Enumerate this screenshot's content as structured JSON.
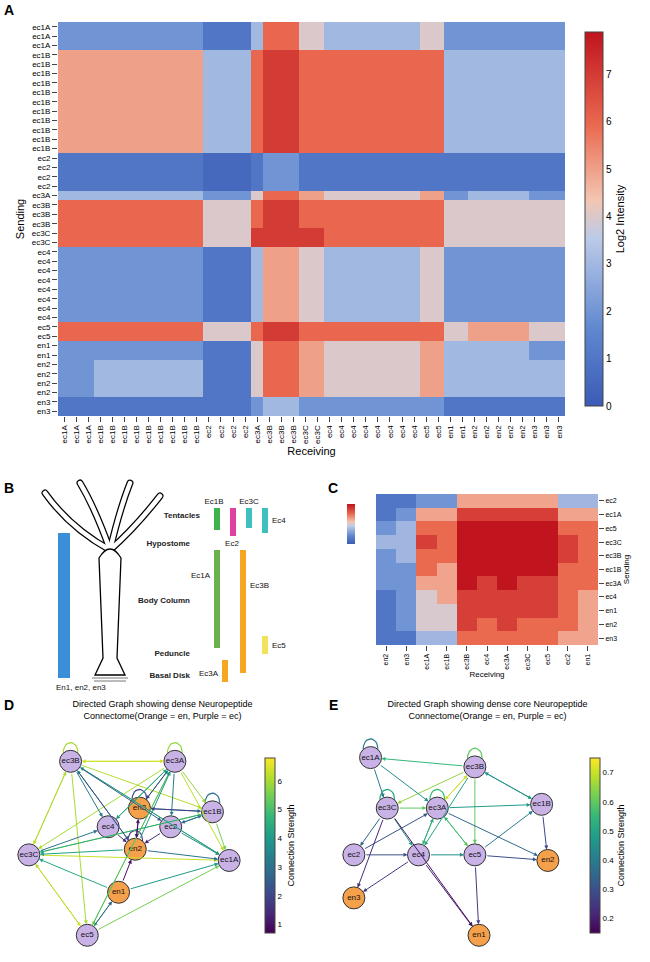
{
  "chart_data": [
    {
      "panel": "A",
      "type": "heatmap",
      "x_label": "Receiving",
      "y_label": "Sending",
      "groups": [
        "ec1A",
        "ec1B",
        "ec2",
        "ec3A",
        "ec3B",
        "ec3C",
        "ec4",
        "ec5",
        "en1",
        "en2",
        "en3"
      ],
      "x_tick_labels": [
        "ec1A",
        "ec1A",
        "ec1A",
        "ec1B",
        "ec1B",
        "ec1B",
        "ec1B",
        "ec1B",
        "ec1B",
        "ec1B",
        "ec1B",
        "ec1B",
        "ec2",
        "ec2",
        "ec2",
        "ec2",
        "ec3A",
        "ec3B",
        "ec3B",
        "ec3B",
        "ec3C",
        "ec3C",
        "ec4",
        "ec4",
        "ec4",
        "ec4",
        "ec4",
        "ec4",
        "ec4",
        "ec4",
        "ec5",
        "ec5",
        "en1",
        "en1",
        "en2",
        "en2",
        "en2",
        "en2",
        "en2",
        "en3",
        "en3",
        "en3"
      ],
      "y_tick_labels": [
        "ec1A",
        "ec1A",
        "ec1A",
        "ec1B",
        "ec1B",
        "ec1B",
        "ec1B",
        "ec1B",
        "ec1B",
        "ec1B",
        "ec1B",
        "ec1B",
        "ec1B",
        "ec1B",
        "ec2",
        "ec2",
        "ec2",
        "ec2",
        "ec3A",
        "ec3B",
        "ec3B",
        "ec3B",
        "ec3C",
        "ec3C",
        "ec4",
        "ec4",
        "ec4",
        "ec4",
        "ec4",
        "ec4",
        "ec4",
        "ec4",
        "ec5",
        "ec5",
        "en1",
        "en1",
        "en2",
        "en2",
        "en2",
        "en2",
        "en3",
        "en3"
      ],
      "z": [
        [
          2,
          2,
          1,
          3,
          6,
          4,
          3,
          4,
          2,
          2,
          2
        ],
        [
          5,
          5,
          3,
          6,
          7,
          6,
          6,
          6,
          3,
          3,
          3
        ],
        [
          1,
          1,
          0.5,
          1,
          2,
          1,
          1,
          1,
          1,
          1,
          1
        ],
        [
          3,
          3,
          2,
          4,
          6,
          5,
          4,
          5,
          2,
          3,
          2
        ],
        [
          6,
          6,
          4,
          6,
          7,
          6,
          6,
          6,
          4,
          4,
          4
        ],
        [
          6,
          6,
          4,
          7,
          7,
          7,
          6,
          6,
          4,
          4,
          4
        ],
        [
          2,
          2,
          1,
          3,
          5,
          4,
          3,
          4,
          2,
          2,
          2
        ],
        [
          6,
          6,
          4,
          6,
          7,
          6,
          6,
          6,
          4,
          5,
          4
        ],
        [
          2,
          2,
          1,
          4,
          6,
          5,
          4,
          5,
          3,
          3,
          2
        ],
        [
          2,
          3,
          1,
          4,
          6,
          5,
          4,
          5,
          3,
          3,
          3
        ],
        [
          1,
          1,
          1,
          2,
          3,
          2,
          2,
          2,
          1,
          1,
          1
        ]
      ],
      "colorbar": {
        "title": "Log2 Intensity",
        "range": [
          0,
          7.9
        ],
        "ticks": [
          0,
          1,
          2,
          3,
          4,
          5,
          6,
          7
        ]
      }
    },
    {
      "panel": "C",
      "type": "heatmap",
      "x_label": "Receiving",
      "y_label": "Sending",
      "x_categories": [
        "en2",
        "en3",
        "ec1A",
        "ec1B",
        "ec3B",
        "ec4",
        "ec3A",
        "ec3C",
        "ec5",
        "ec2",
        "en1"
      ],
      "y_categories": [
        "ec2",
        "ec1A",
        "ec5",
        "ec3C",
        "ec3B",
        "ec1B",
        "ec3A",
        "ec4",
        "en1",
        "en2",
        "en3"
      ],
      "z": [
        [
          1,
          1,
          2,
          2,
          5,
          5,
          5,
          5,
          5,
          3,
          3
        ],
        [
          1,
          2,
          5,
          5,
          7,
          7,
          7,
          7,
          7,
          5,
          5
        ],
        [
          2,
          3,
          6,
          6,
          8,
          8,
          8,
          8,
          8,
          6,
          6
        ],
        [
          3,
          3,
          7,
          6,
          8,
          8,
          8,
          8,
          8,
          7,
          6
        ],
        [
          2,
          3,
          6,
          6,
          8,
          8,
          8,
          8,
          8,
          7,
          6
        ],
        [
          2,
          2,
          6,
          5,
          8,
          8,
          8,
          8,
          8,
          6,
          6
        ],
        [
          2,
          2,
          5,
          5,
          8,
          7,
          8,
          7,
          7,
          6,
          6
        ],
        [
          1,
          2,
          4,
          5,
          7,
          7,
          7,
          7,
          7,
          6,
          5
        ],
        [
          1,
          2,
          4,
          4,
          7,
          7,
          7,
          7,
          7,
          6,
          5
        ],
        [
          1,
          2,
          4,
          4,
          7,
          6,
          7,
          6,
          6,
          6,
          5
        ],
        [
          1,
          1,
          3,
          3,
          6,
          6,
          6,
          6,
          6,
          5,
          5
        ]
      ],
      "colorbar": {
        "range": [
          0,
          8
        ]
      }
    },
    {
      "panel": "D",
      "type": "network",
      "title": "Directed Graph showing dense Neuropeptide Connectome(Orange = en, Purple = ec)",
      "nodes": [
        {
          "name": "ec3B",
          "color": "#c9b3e6"
        },
        {
          "name": "ec3A",
          "color": "#c9b3e6"
        },
        {
          "name": "ec1B",
          "color": "#c9b3e6"
        },
        {
          "name": "ec1A",
          "color": "#c9b3e6"
        },
        {
          "name": "ec3C",
          "color": "#c9b3e6"
        },
        {
          "name": "ec5",
          "color": "#c9b3e6"
        },
        {
          "name": "ec4",
          "color": "#c9b3e6"
        },
        {
          "name": "ec2",
          "color": "#c9b3e6"
        },
        {
          "name": "en3",
          "color": "#f5a04a"
        },
        {
          "name": "en2",
          "color": "#f5a04a"
        },
        {
          "name": "en1",
          "color": "#f5a04a"
        }
      ],
      "edges": [
        [
          "ec3B",
          "ec3A",
          6.5
        ],
        [
          "ec3A",
          "ec3B",
          6.3
        ],
        [
          "ec3B",
          "ec3C",
          6.4
        ],
        [
          "ec3C",
          "ec3B",
          6.0
        ],
        [
          "ec3A",
          "ec1B",
          5.8
        ],
        [
          "ec1B",
          "ec1A",
          5.5
        ],
        [
          "ec3A",
          "ec1A",
          6.2
        ],
        [
          "ec3C",
          "ec5",
          6.6
        ],
        [
          "ec5",
          "ec3C",
          6.1
        ],
        [
          "ec3B",
          "ec5",
          6.0
        ],
        [
          "ec3A",
          "ec5",
          5.9
        ],
        [
          "ec5",
          "ec1A",
          5.5
        ],
        [
          "ec3C",
          "ec1A",
          6.3
        ],
        [
          "ec3C",
          "ec1B",
          5.7
        ],
        [
          "ec3B",
          "ec1B",
          6.1
        ],
        [
          "ec3B",
          "ec1A",
          5.2
        ],
        [
          "ec3A",
          "ec3C",
          6.0
        ],
        [
          "ec1B",
          "ec3C",
          4.5
        ],
        [
          "ec1A",
          "ec3B",
          4.0
        ],
        [
          "ec5",
          "ec3A",
          5.0
        ],
        [
          "ec3B",
          "ec4",
          3.2
        ],
        [
          "ec3A",
          "ec4",
          3.5
        ],
        [
          "ec3C",
          "ec4",
          3.0
        ],
        [
          "ec4",
          "ec3A",
          4.5
        ],
        [
          "ec3B",
          "ec2",
          2.5
        ],
        [
          "ec3A",
          "ec2",
          3.3
        ],
        [
          "ec2",
          "ec1B",
          4.0
        ],
        [
          "ec2",
          "ec1A",
          3.8
        ],
        [
          "ec1B",
          "ec2",
          2.8
        ],
        [
          "en2",
          "ec3B",
          3.5
        ],
        [
          "en2",
          "ec3A",
          3.8
        ],
        [
          "en2",
          "ec3C",
          4.2
        ],
        [
          "en2",
          "ec1A",
          3.0
        ],
        [
          "en3",
          "ec3A",
          4.0
        ],
        [
          "en3",
          "ec1B",
          3.4
        ],
        [
          "en1",
          "ec5",
          4.8
        ],
        [
          "en1",
          "ec3C",
          4.4
        ],
        [
          "en1",
          "ec1A",
          4.0
        ],
        [
          "ec3B",
          "en2",
          2.2
        ],
        [
          "ec3A",
          "en3",
          2.0
        ],
        [
          "ec1B",
          "en3",
          1.8
        ],
        [
          "ec5",
          "en1",
          2.6
        ],
        [
          "ec4",
          "en2",
          1.5
        ],
        [
          "en2",
          "en3",
          1.2
        ],
        [
          "en3",
          "en2",
          1.0
        ],
        [
          "en1",
          "en2",
          0.9
        ],
        [
          "ec2",
          "en2",
          1.4
        ],
        [
          "ec3B",
          "ec3B",
          6.0
        ],
        [
          "ec3A",
          "ec3A",
          5.8
        ],
        [
          "ec1B",
          "ec1B",
          3.0
        ],
        [
          "en3",
          "en3",
          2.0
        ],
        [
          "en2",
          "en2",
          1.8
        ]
      ],
      "colorbar": {
        "title": "Connection Strength",
        "range": [
          0.7,
          6.8
        ],
        "ticks": [
          1,
          2,
          3,
          4,
          5,
          6
        ]
      }
    },
    {
      "panel": "E",
      "type": "network",
      "title": "Directed Graph showing dense core Neuropeptide Connectome(Orange = en, Purple = ec)",
      "nodes": [
        {
          "name": "ec1A",
          "color": "#c9b3e6"
        },
        {
          "name": "ec3B",
          "color": "#c9b3e6"
        },
        {
          "name": "ec3C",
          "color": "#c9b3e6"
        },
        {
          "name": "ec3A",
          "color": "#c9b3e6"
        },
        {
          "name": "ec1B",
          "color": "#c9b3e6"
        },
        {
          "name": "ec2",
          "color": "#c9b3e6"
        },
        {
          "name": "ec4",
          "color": "#c9b3e6"
        },
        {
          "name": "ec5",
          "color": "#c9b3e6"
        },
        {
          "name": "en2",
          "color": "#f5a04a"
        },
        {
          "name": "en3",
          "color": "#f5a04a"
        },
        {
          "name": "en1",
          "color": "#f5a04a"
        }
      ],
      "edges": [
        [
          "ec3B",
          "ec3A",
          0.72
        ],
        [
          "ec3A",
          "ec3B",
          0.7
        ],
        [
          "ec3B",
          "ec3C",
          0.65
        ],
        [
          "ec3C",
          "ec3A",
          0.6
        ],
        [
          "ec3A",
          "ec5",
          0.62
        ],
        [
          "ec5",
          "ec3A",
          0.55
        ],
        [
          "ec3B",
          "ec1B",
          0.5
        ],
        [
          "ec1B",
          "ec3B",
          0.45
        ],
        [
          "ec3B",
          "ec1A",
          0.55
        ],
        [
          "ec1A",
          "ec3C",
          0.4
        ],
        [
          "ec3C",
          "ec4",
          0.5
        ],
        [
          "ec4",
          "ec5",
          0.45
        ],
        [
          "ec3A",
          "ec4",
          0.58
        ],
        [
          "ec4",
          "ec3A",
          0.52
        ],
        [
          "ec5",
          "ec1B",
          0.4
        ],
        [
          "ec3B",
          "ec5",
          0.6
        ],
        [
          "ec3A",
          "ec1B",
          0.48
        ],
        [
          "ec3C",
          "ec2",
          0.35
        ],
        [
          "ec2",
          "ec3A",
          0.3
        ],
        [
          "ec4",
          "en3",
          0.25
        ],
        [
          "ec3C",
          "en3",
          0.22
        ],
        [
          "ec5",
          "en2",
          0.3
        ],
        [
          "ec1B",
          "en2",
          0.28
        ],
        [
          "ec3A",
          "en2",
          0.35
        ],
        [
          "ec4",
          "en1",
          0.2
        ],
        [
          "ec3C",
          "en1",
          0.18
        ],
        [
          "ec5",
          "en1",
          0.25
        ],
        [
          "ec1A",
          "ec3A",
          0.45
        ],
        [
          "ec3B",
          "ec4",
          0.5
        ],
        [
          "ec2",
          "ec4",
          0.3
        ],
        [
          "ec3B",
          "ec3B",
          0.6
        ],
        [
          "ec3A",
          "ec3A",
          0.55
        ],
        [
          "ec3C",
          "ec3C",
          0.5
        ],
        [
          "ec1A",
          "ec1A",
          0.4
        ]
      ],
      "colorbar": {
        "title": "Connection Strength",
        "range": [
          0.15,
          0.75
        ],
        "ticks": [
          0.2,
          0.3,
          0.4,
          0.5,
          0.6,
          0.7
        ]
      }
    }
  ],
  "diagram": {
    "panel": "B",
    "regions": [
      "Tentacles",
      "Hypostome",
      "Body Column",
      "Peduncle",
      "Basal Disk"
    ],
    "bars": [
      {
        "label": "Ec1B",
        "color": "#3cb44b"
      },
      {
        "label": "Ec2",
        "color": "#e040a0"
      },
      {
        "label": "Ec3C",
        "color": "#40bfbf"
      },
      {
        "label": "Ec4",
        "color": "#40bfbf"
      },
      {
        "label": "Ec1A",
        "color": "#6ab04c"
      },
      {
        "label": "Ec3B",
        "color": "#f5a623"
      },
      {
        "label": "Ec5",
        "color": "#f2e35c"
      },
      {
        "label": "Ec3A",
        "color": "#f5a623"
      },
      {
        "label": "En1, en2, en3",
        "color": "#3a8fd8"
      }
    ]
  }
}
